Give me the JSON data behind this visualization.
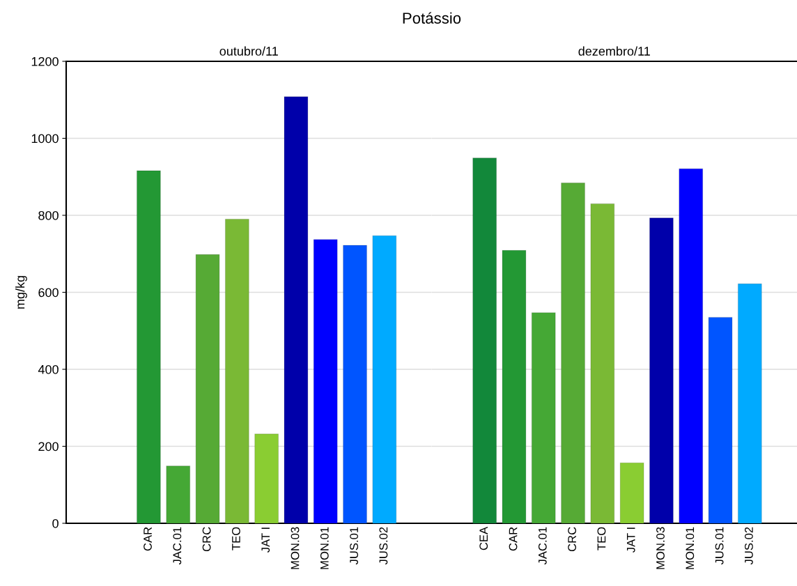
{
  "chart_data": [
    {
      "type": "bar",
      "title": "Potássio",
      "subtitle": "outubro/11",
      "ylabel": "mg/kg",
      "ylim": [
        0,
        1200
      ],
      "yticks": [
        0,
        200,
        400,
        600,
        800,
        1000,
        1200
      ],
      "grid": "y",
      "legend": false,
      "categories": [
        null,
        "CAR",
        "JAC.01",
        "CRC",
        "TEO",
        "JAT I",
        "MON.03",
        "MON.01",
        "JUS.01",
        "JUS.02"
      ],
      "values": [
        null,
        916,
        149,
        698,
        790,
        232,
        1108,
        737,
        722,
        747
      ],
      "colors": [
        "#12883a",
        "#239834",
        "#45a835",
        "#56aa35",
        "#7ab935",
        "#8acd32",
        "#0000aa",
        "#0000ff",
        "#0055ff",
        "#00aaff"
      ]
    },
    {
      "type": "bar",
      "subtitle": "dezembro/11",
      "ylim": [
        0,
        1200
      ],
      "yticks": [
        0,
        200,
        400,
        600,
        800,
        1000,
        1200
      ],
      "grid": "y",
      "legend": false,
      "tick_labels": "x",
      "categories": [
        "CEA",
        "CAR",
        "JAC.01",
        "CRC",
        "TEO",
        "JAT I",
        "MON.03",
        "MON.01",
        "JUS.01",
        "JUS.02"
      ],
      "values": [
        949,
        709,
        547,
        884,
        830,
        157,
        793,
        921,
        535,
        622
      ],
      "colors": [
        "#12883a",
        "#239834",
        "#45a835",
        "#56aa35",
        "#7ab935",
        "#8acd32",
        "#0000aa",
        "#0000ff",
        "#0055ff",
        "#00aaff"
      ]
    }
  ]
}
